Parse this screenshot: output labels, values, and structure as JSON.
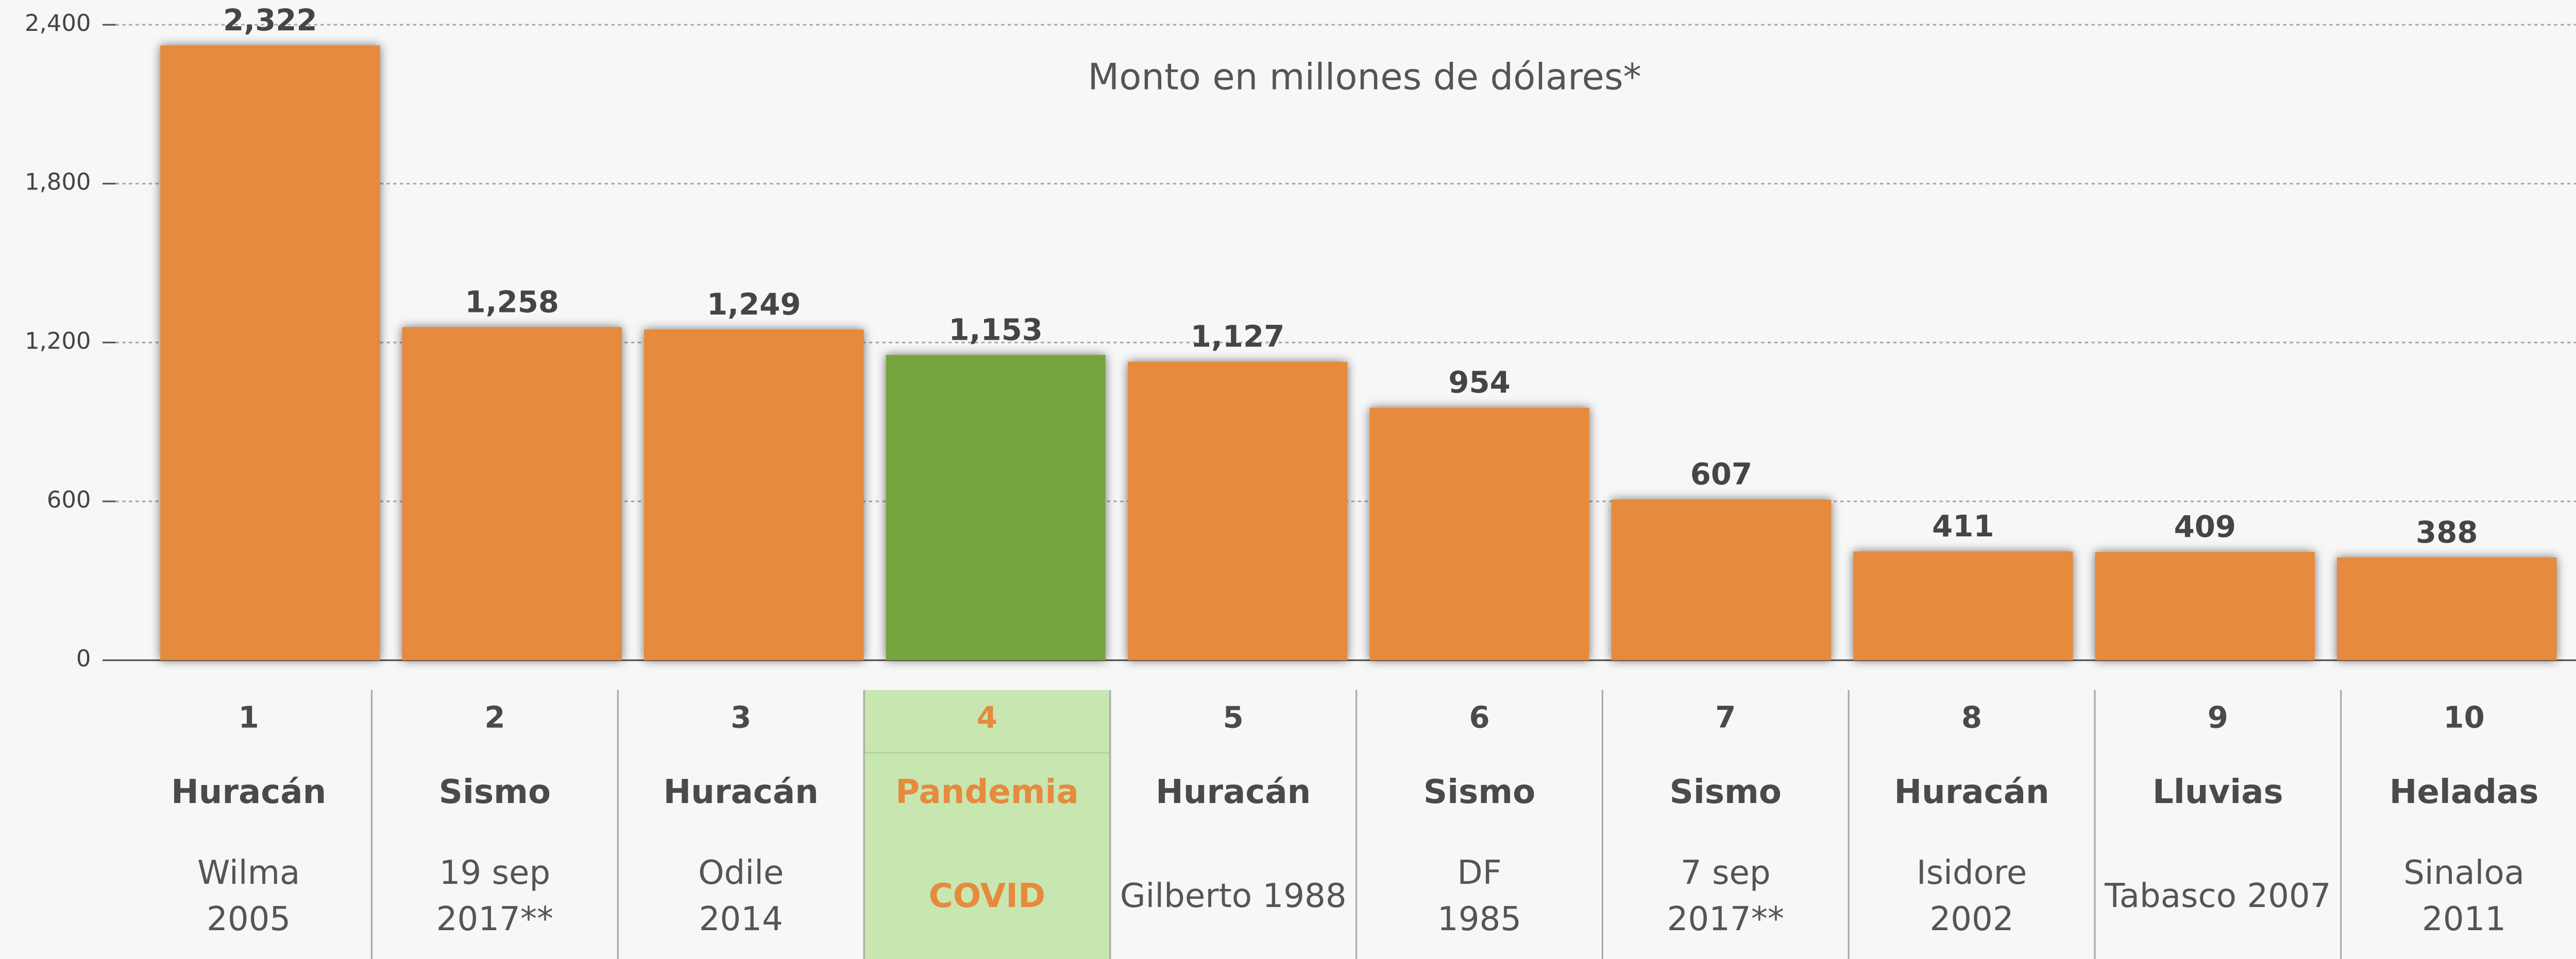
{
  "chart_data": {
    "type": "bar",
    "title": "Monto en millones de dólares*",
    "categories": [
      "1",
      "2",
      "3",
      "4",
      "5",
      "6",
      "7",
      "8",
      "9",
      "10"
    ],
    "event_types": [
      "Huracán",
      "Sismo",
      "Huracán",
      "Pandemia",
      "Huracán",
      "Sismo",
      "Sismo",
      "Huracán",
      "Lluvias",
      "Heladas"
    ],
    "event_names": [
      [
        "Wilma",
        "2005"
      ],
      [
        "19 sep",
        "2017**"
      ],
      [
        "Odile",
        "2014"
      ],
      [
        "COVID"
      ],
      [
        "Gilberto 1988"
      ],
      [
        "DF",
        "1985"
      ],
      [
        "7 sep",
        "2017**"
      ],
      [
        "Isidore",
        "2002"
      ],
      [
        "Tabasco 2007"
      ],
      [
        "Sinaloa",
        "2011"
      ]
    ],
    "values": [
      2322,
      1258,
      1249,
      1153,
      1127,
      954,
      607,
      411,
      409,
      388
    ],
    "value_labels": [
      "2,322",
      "1,258",
      "1,249",
      "1,153",
      "1,127",
      "954",
      "607",
      "411",
      "409",
      "388"
    ],
    "colors": [
      "#e68a3e",
      "#e68a3e",
      "#e68a3e",
      "#76a540",
      "#e68a3e",
      "#e68a3e",
      "#e68a3e",
      "#e68a3e",
      "#e68a3e",
      "#e68a3e"
    ],
    "ylim": [
      0,
      2400
    ],
    "yticks": [
      0,
      600,
      {
        "value": 1200,
        "label": "1,200"
      },
      {
        "value": 1800,
        "label": "1,800"
      },
      {
        "value": 2400,
        "label": "2,400"
      }
    ],
    "grid": true
  }
}
